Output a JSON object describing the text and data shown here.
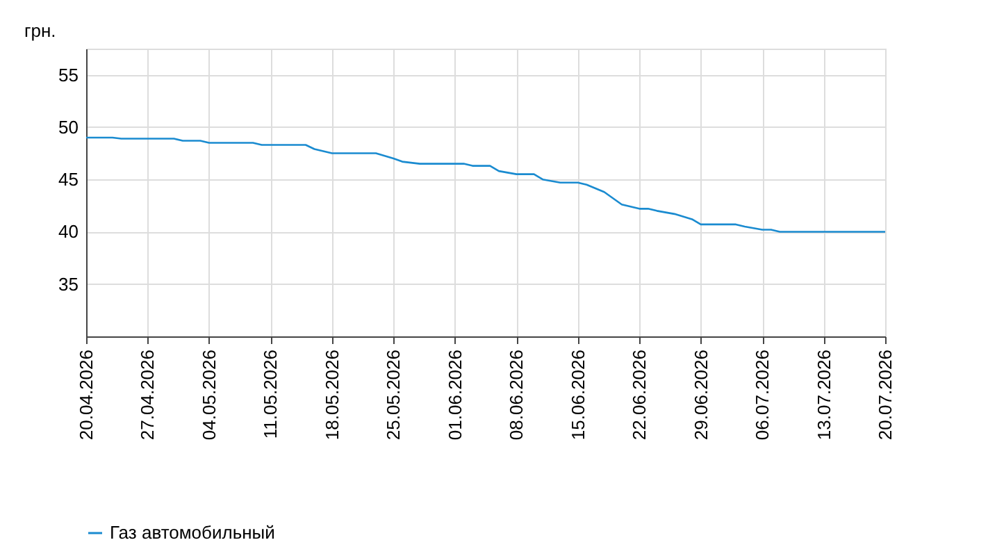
{
  "chart_data": {
    "type": "line",
    "ylabel": "грн.",
    "legend": "bottom",
    "grid": true,
    "x": [
      "2026-04-20",
      "2026-04-23",
      "2026-04-24",
      "2026-04-30",
      "2026-05-01",
      "2026-05-03",
      "2026-05-04",
      "2026-05-09",
      "2026-05-10",
      "2026-05-15",
      "2026-05-16",
      "2026-05-18",
      "2026-05-23",
      "2026-05-25",
      "2026-05-26",
      "2026-05-28",
      "2026-06-02",
      "2026-06-03",
      "2026-06-05",
      "2026-06-06",
      "2026-06-08",
      "2026-06-10",
      "2026-06-11",
      "2026-06-13",
      "2026-06-15",
      "2026-06-16",
      "2026-06-18",
      "2026-06-20",
      "2026-06-22",
      "2026-06-23",
      "2026-06-24",
      "2026-06-26",
      "2026-06-28",
      "2026-06-29",
      "2026-07-03",
      "2026-07-04",
      "2026-07-06",
      "2026-07-07",
      "2026-07-08",
      "2026-07-20"
    ],
    "series": [
      {
        "name": "Газ автомобильный",
        "color": "#1a8bd0",
        "values": [
          49.0,
          49.0,
          48.9,
          48.9,
          48.7,
          48.7,
          48.5,
          48.5,
          48.3,
          48.3,
          47.9,
          47.5,
          47.5,
          47.0,
          46.7,
          46.5,
          46.5,
          46.3,
          46.3,
          45.8,
          45.5,
          45.5,
          45.0,
          44.7,
          44.7,
          44.5,
          43.8,
          42.6,
          42.2,
          42.2,
          42.0,
          41.7,
          41.2,
          40.7,
          40.7,
          40.5,
          40.2,
          40.2,
          40.0,
          40.0
        ]
      }
    ],
    "xlim": [
      "2026-04-20",
      "2026-07-20"
    ],
    "xticks": [
      {
        "value": "2026-04-20",
        "label": "20.04.2026"
      },
      {
        "value": "2026-04-27",
        "label": "27.04.2026"
      },
      {
        "value": "2026-05-04",
        "label": "04.05.2026"
      },
      {
        "value": "2026-05-11",
        "label": "11.05.2026"
      },
      {
        "value": "2026-05-18",
        "label": "18.05.2026"
      },
      {
        "value": "2026-05-25",
        "label": "25.05.2026"
      },
      {
        "value": "2026-06-01",
        "label": "01.06.2026"
      },
      {
        "value": "2026-06-08",
        "label": "08.06.2026"
      },
      {
        "value": "2026-06-15",
        "label": "15.06.2026"
      },
      {
        "value": "2026-06-22",
        "label": "22.06.2026"
      },
      {
        "value": "2026-06-29",
        "label": "29.06.2026"
      },
      {
        "value": "2026-07-06",
        "label": "06.07.2026"
      },
      {
        "value": "2026-07-13",
        "label": "13.07.2026"
      },
      {
        "value": "2026-07-20",
        "label": "20.07.2026"
      }
    ],
    "ylim": [
      30,
      57.5
    ],
    "yticks": [
      35,
      40,
      45,
      50,
      55
    ]
  }
}
